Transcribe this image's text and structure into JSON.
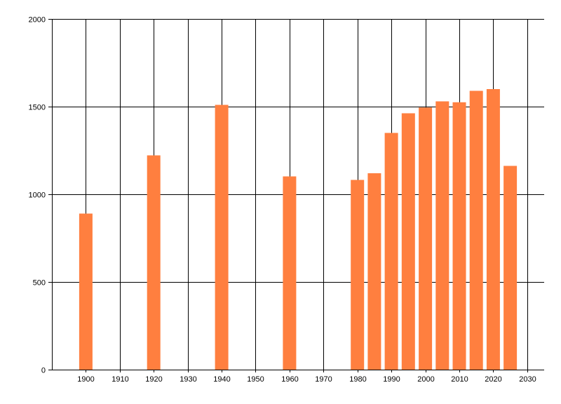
{
  "chart_data": {
    "type": "bar",
    "title": "",
    "xlabel": "",
    "ylabel": "",
    "x": [
      1900,
      1920,
      1940,
      1960,
      1980,
      1985,
      1990,
      1995,
      2000,
      2005,
      2010,
      2015,
      2020,
      2025
    ],
    "values": [
      890,
      1222,
      1510,
      1102,
      1082,
      1120,
      1350,
      1462,
      1495,
      1530,
      1525,
      1590,
      1600,
      1162
    ],
    "xlim": [
      1890,
      2035
    ],
    "ylim": [
      0,
      2000
    ],
    "x_ticks": [
      "1900",
      "1910",
      "1920",
      "1930",
      "1940",
      "1950",
      "1960",
      "1970",
      "1980",
      "1990",
      "2000",
      "2010",
      "2020",
      "2030"
    ],
    "y_ticks": [
      "0",
      "500",
      "1000",
      "1500",
      "2000"
    ],
    "grid": true,
    "bar_color": "#ff7f3f",
    "grid_color": "#000000"
  }
}
